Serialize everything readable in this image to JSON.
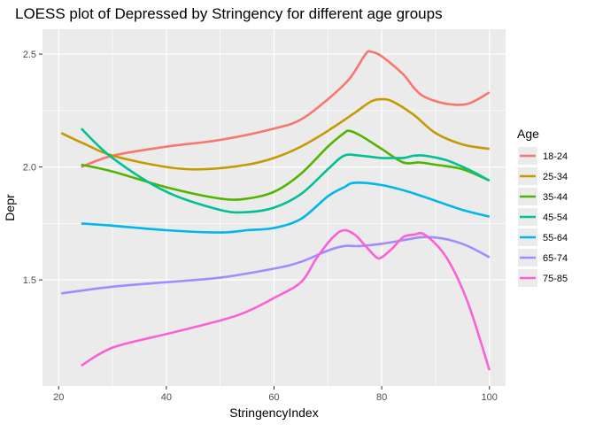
{
  "chart_data": {
    "type": "line",
    "title": "LOESS plot of Depressed by Stringency for different age groups",
    "xlabel": "StringencyIndex",
    "ylabel": "Depr",
    "xlim": [
      17,
      103
    ],
    "ylim": [
      1.03,
      2.61
    ],
    "xticks": [
      20,
      40,
      60,
      80,
      100
    ],
    "yticks": [
      1.5,
      2.0,
      2.5
    ],
    "xtick_labels": [
      "20",
      "40",
      "60",
      "80",
      "100"
    ],
    "ytick_labels": [
      "1.5",
      "2.0",
      "2.5"
    ],
    "grid": true,
    "legend_title": "Age",
    "legend_position": "right",
    "series": [
      {
        "name": "18-24",
        "color": "#F8766D",
        "points": [
          [
            24.2,
            2.0
          ],
          [
            30,
            2.05
          ],
          [
            40,
            2.09
          ],
          [
            50,
            2.12
          ],
          [
            60,
            2.17
          ],
          [
            65,
            2.21
          ],
          [
            70,
            2.3
          ],
          [
            74,
            2.39
          ],
          [
            77,
            2.5
          ],
          [
            78,
            2.51
          ],
          [
            80,
            2.49
          ],
          [
            84,
            2.41
          ],
          [
            86,
            2.35
          ],
          [
            88,
            2.31
          ],
          [
            92,
            2.28
          ],
          [
            96,
            2.28
          ],
          [
            100,
            2.33
          ]
        ]
      },
      {
        "name": "25-34",
        "color": "#C49A00",
        "points": [
          [
            20.5,
            2.15
          ],
          [
            25,
            2.1
          ],
          [
            30,
            2.05
          ],
          [
            40,
            2.0
          ],
          [
            47,
            1.99
          ],
          [
            55,
            2.01
          ],
          [
            60,
            2.04
          ],
          [
            65,
            2.09
          ],
          [
            70,
            2.16
          ],
          [
            75,
            2.24
          ],
          [
            78,
            2.29
          ],
          [
            80,
            2.3
          ],
          [
            82,
            2.29
          ],
          [
            86,
            2.23
          ],
          [
            90,
            2.15
          ],
          [
            95,
            2.1
          ],
          [
            100,
            2.08
          ]
        ]
      },
      {
        "name": "35-44",
        "color": "#53B400",
        "points": [
          [
            24.2,
            2.01
          ],
          [
            30,
            1.98
          ],
          [
            40,
            1.91
          ],
          [
            50,
            1.86
          ],
          [
            55,
            1.86
          ],
          [
            60,
            1.89
          ],
          [
            65,
            1.97
          ],
          [
            70,
            2.09
          ],
          [
            73,
            2.15
          ],
          [
            74,
            2.16
          ],
          [
            76,
            2.14
          ],
          [
            80,
            2.08
          ],
          [
            84,
            2.02
          ],
          [
            87,
            2.02
          ],
          [
            90,
            2.01
          ],
          [
            95,
            1.99
          ],
          [
            100,
            1.94
          ]
        ]
      },
      {
        "name": "45-54",
        "color": "#00C094",
        "points": [
          [
            24.2,
            2.17
          ],
          [
            30,
            2.04
          ],
          [
            40,
            1.89
          ],
          [
            50,
            1.81
          ],
          [
            55,
            1.8
          ],
          [
            60,
            1.82
          ],
          [
            65,
            1.88
          ],
          [
            70,
            1.99
          ],
          [
            73,
            2.05
          ],
          [
            76,
            2.05
          ],
          [
            80,
            2.04
          ],
          [
            82,
            2.04
          ],
          [
            84,
            2.04
          ],
          [
            86,
            2.05
          ],
          [
            88,
            2.05
          ],
          [
            92,
            2.03
          ],
          [
            96,
            1.99
          ],
          [
            100,
            1.94
          ]
        ]
      },
      {
        "name": "55-64",
        "color": "#00B6EB",
        "points": [
          [
            24.2,
            1.75
          ],
          [
            30,
            1.74
          ],
          [
            40,
            1.72
          ],
          [
            50,
            1.71
          ],
          [
            55,
            1.72
          ],
          [
            60,
            1.73
          ],
          [
            65,
            1.77
          ],
          [
            70,
            1.87
          ],
          [
            73,
            1.91
          ],
          [
            75,
            1.93
          ],
          [
            80,
            1.92
          ],
          [
            85,
            1.89
          ],
          [
            90,
            1.85
          ],
          [
            95,
            1.81
          ],
          [
            100,
            1.78
          ]
        ]
      },
      {
        "name": "65-74",
        "color": "#A58AFF",
        "points": [
          [
            20.5,
            1.44
          ],
          [
            30,
            1.47
          ],
          [
            40,
            1.49
          ],
          [
            50,
            1.51
          ],
          [
            60,
            1.55
          ],
          [
            65,
            1.58
          ],
          [
            70,
            1.63
          ],
          [
            73,
            1.65
          ],
          [
            76,
            1.65
          ],
          [
            80,
            1.66
          ],
          [
            85,
            1.68
          ],
          [
            88,
            1.69
          ],
          [
            92,
            1.68
          ],
          [
            96,
            1.65
          ],
          [
            100,
            1.6
          ]
        ]
      },
      {
        "name": "75-85",
        "color": "#FB61D7",
        "points": [
          [
            24.2,
            1.12
          ],
          [
            30,
            1.2
          ],
          [
            40,
            1.26
          ],
          [
            50,
            1.32
          ],
          [
            55,
            1.36
          ],
          [
            60,
            1.42
          ],
          [
            65,
            1.49
          ],
          [
            68,
            1.6
          ],
          [
            71,
            1.69
          ],
          [
            73,
            1.72
          ],
          [
            75,
            1.7
          ],
          [
            77,
            1.65
          ],
          [
            79,
            1.6
          ],
          [
            80,
            1.6
          ],
          [
            82,
            1.64
          ],
          [
            84,
            1.69
          ],
          [
            86,
            1.7
          ],
          [
            88,
            1.7
          ],
          [
            92,
            1.6
          ],
          [
            96,
            1.4
          ],
          [
            100,
            1.1
          ]
        ]
      }
    ]
  }
}
